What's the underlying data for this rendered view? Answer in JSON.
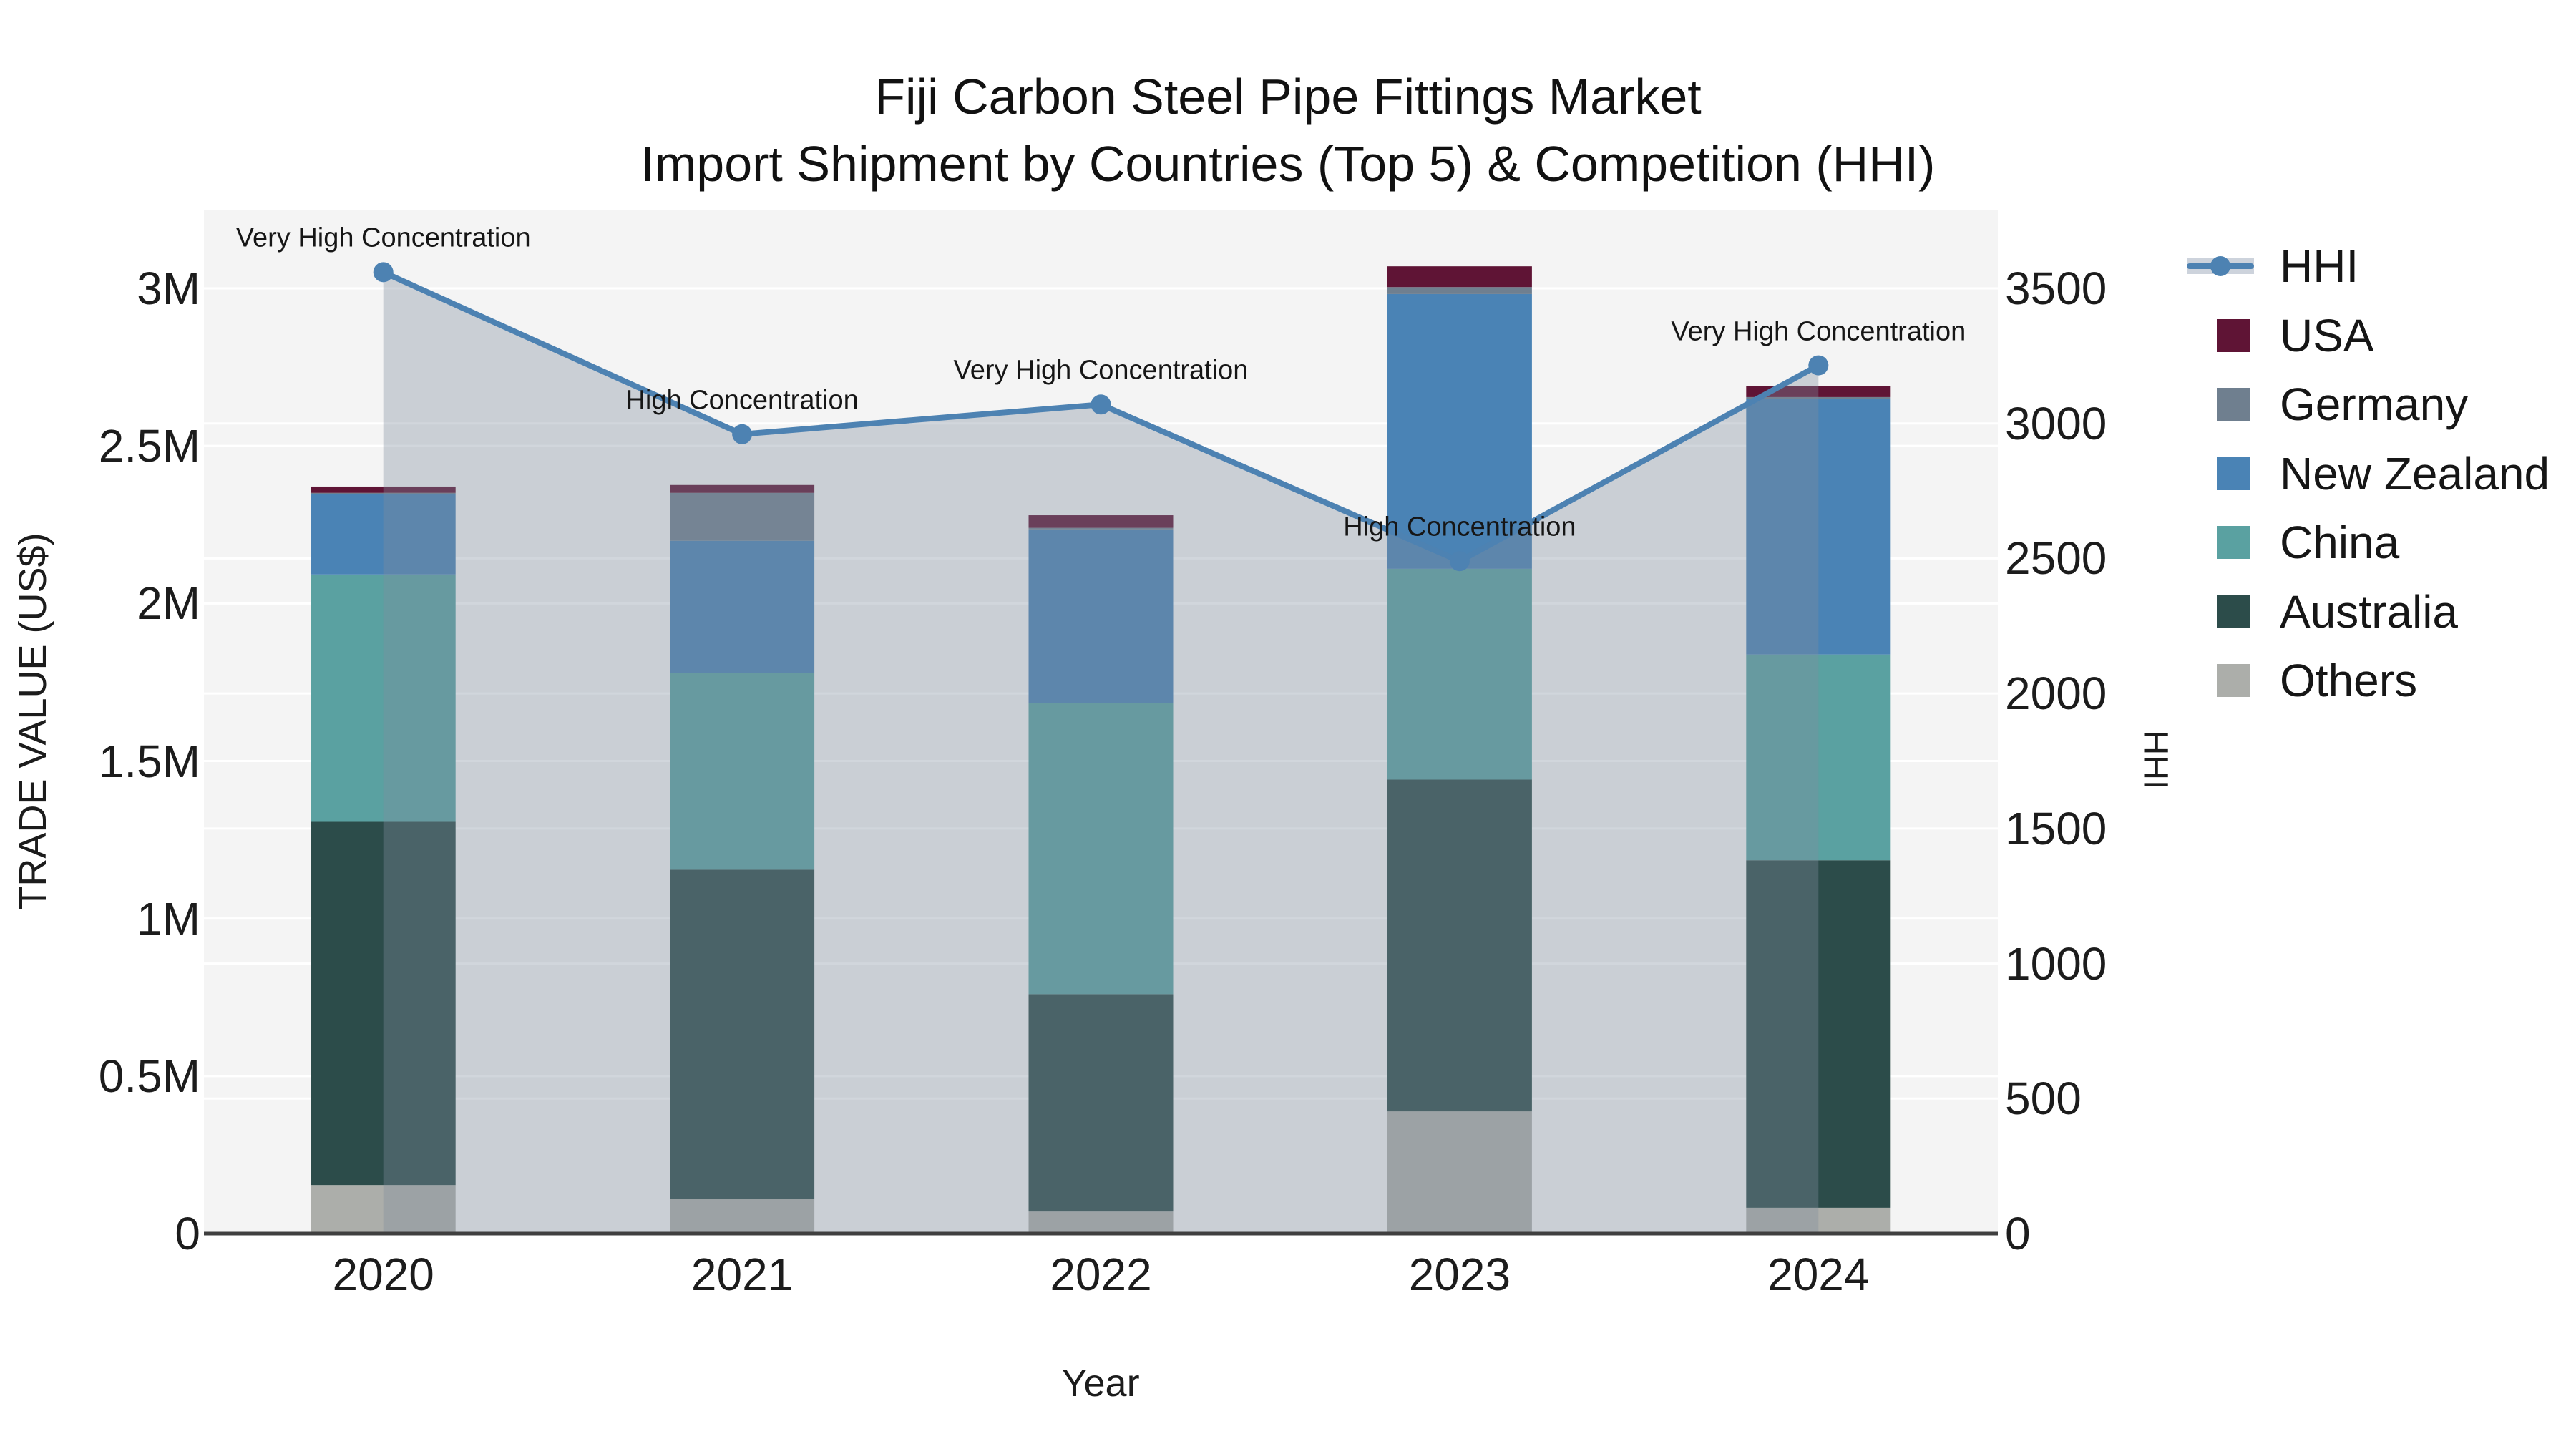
{
  "title": {
    "line1": "Fiji Carbon Steel Pipe Fittings Market",
    "line2": "Import Shipment by Countries (Top 5) & Competition (HHI)"
  },
  "axes": {
    "x": {
      "title": "Year",
      "tick_labels": [
        "2020",
        "2021",
        "2022",
        "2023",
        "2024"
      ]
    },
    "y_left": {
      "title": "TRADE VALUE (US$)",
      "tick_labels": [
        "0",
        "0.5M",
        "1M",
        "1.5M",
        "2M",
        "2.5M",
        "3M"
      ],
      "range": [
        0,
        3000000
      ]
    },
    "y_right": {
      "title": "HHI",
      "tick_labels": [
        "0",
        "500",
        "1000",
        "1500",
        "2000",
        "2500",
        "3000",
        "3500"
      ],
      "range": [
        0,
        3500
      ]
    }
  },
  "colors": {
    "plot_background": "#f4f4f4",
    "page_background": "#ffffff",
    "gridline": "#ffffff",
    "axis_line": "#3f3f3f",
    "text": "#1c1c1c",
    "hhi_line": "#4d82b2",
    "hhi_area_fill": "rgba(127,141,158,0.36)",
    "legend_area_band": "#cdd3dc"
  },
  "chart_data": {
    "type": "bar",
    "subtype": "stacked-bar-with-line",
    "description": "Stacked import trade value bars by country (left axis, US$) with HHI competition index line and shaded area (right axis)",
    "categories": [
      "2020",
      "2021",
      "2022",
      "2023",
      "2024"
    ],
    "stack_order_bottom_to_top": [
      "Others",
      "Australia",
      "China",
      "New Zealand",
      "Germany",
      "USA"
    ],
    "series": [
      {
        "name": "USA",
        "color": "#5f1435",
        "values": [
          20000,
          25000,
          40000,
          66000,
          34000
        ]
      },
      {
        "name": "Germany",
        "color": "#6f7f8f",
        "values": [
          5000,
          152000,
          5000,
          22000,
          5000
        ]
      },
      {
        "name": "New Zealand",
        "color": "#4a83b5",
        "values": [
          254000,
          420000,
          551000,
          872000,
          812000
        ]
      },
      {
        "name": "China",
        "color": "#5aa1a1",
        "values": [
          785000,
          624000,
          924000,
          669000,
          653000
        ]
      },
      {
        "name": "Australia",
        "color": "#2c4c4a",
        "values": [
          1153000,
          1046000,
          690000,
          1053000,
          1103000
        ]
      },
      {
        "name": "Others",
        "color": "#acaeaa",
        "values": [
          154000,
          109000,
          70000,
          388000,
          82000
        ]
      }
    ],
    "bar_totals": [
      2371000,
      2376000,
      2280000,
      3070000,
      2689000
    ],
    "line_series": {
      "name": "HHI",
      "axis": "right",
      "color": "#4d82b2",
      "area_fill": "rgba(127,141,158,0.36)",
      "values": [
        3560,
        2960,
        3070,
        2490,
        3215
      ]
    },
    "annotations": [
      {
        "category": "2020",
        "text": "Very High Concentration"
      },
      {
        "category": "2021",
        "text": "High Concentration"
      },
      {
        "category": "2022",
        "text": "Very High Concentration"
      },
      {
        "category": "2023",
        "text": "High Concentration"
      },
      {
        "category": "2024",
        "text": "Very High Concentration"
      }
    ],
    "xlabel": "Year",
    "ylabel_left": "TRADE VALUE (US$)",
    "ylabel_right": "HHI",
    "ylim_left": [
      0,
      3000000
    ],
    "ylim_right": [
      0,
      3500
    ],
    "grid": true,
    "legend_position": "right-outside"
  },
  "legend": {
    "entries": [
      "HHI",
      "USA",
      "Germany",
      "New Zealand",
      "China",
      "Australia",
      "Others"
    ]
  }
}
